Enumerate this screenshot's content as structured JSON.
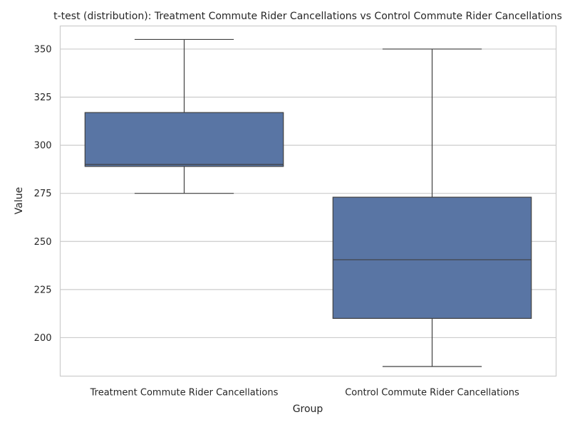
{
  "chart_data": {
    "type": "box",
    "title": "t-test (distribution): Treatment Commute Rider Cancellations vs Control Commute Rider Cancellations",
    "xlabel": "Group",
    "ylabel": "Value",
    "ylim": [
      180,
      362
    ],
    "yticks": [
      200,
      225,
      250,
      275,
      300,
      325,
      350
    ],
    "grid": true,
    "box_color": "#5975a4",
    "line_color": "#404040",
    "categories": [
      "Treatment Commute Rider Cancellations",
      "Control Commute Rider Cancellations"
    ],
    "boxes": [
      {
        "whisker_low": 275,
        "q1": 289,
        "median": 290,
        "q3": 317,
        "whisker_high": 355
      },
      {
        "whisker_low": 185,
        "q1": 210,
        "median": 240.5,
        "q3": 273,
        "whisker_high": 350
      }
    ]
  }
}
